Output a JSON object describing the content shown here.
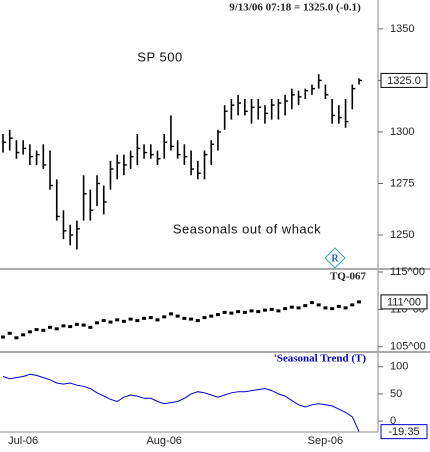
{
  "chart_data": [
    {
      "type": "ohlc",
      "title": "9/13/06 07:18 = 1325.0 (-0.1)",
      "annotations": [
        "SP 500",
        "Seasonals out of whack"
      ],
      "icon_label": "R",
      "color": "#000000",
      "high": [
        1299,
        1301,
        1296,
        1296,
        1294,
        1291,
        1294,
        1291,
        1277,
        1262,
        1255,
        1257,
        1279,
        1272,
        1279,
        1274,
        1286,
        1289,
        1289,
        1291,
        1299,
        1294,
        1294,
        1291,
        1299,
        1308,
        1296,
        1294,
        1291,
        1286,
        1291,
        1296,
        1301,
        1313,
        1316,
        1318,
        1316,
        1316,
        1316,
        1313,
        1316,
        1316,
        1318,
        1321,
        1320,
        1321,
        1323,
        1328,
        1323,
        1316,
        1313,
        1316,
        1323,
        1326
      ],
      "low": [
        1290,
        1291,
        1287,
        1289,
        1284,
        1284,
        1282,
        1272,
        1257,
        1248,
        1245,
        1243,
        1257,
        1257,
        1264,
        1260,
        1272,
        1277,
        1279,
        1282,
        1284,
        1287,
        1287,
        1284,
        1287,
        1291,
        1287,
        1284,
        1279,
        1277,
        1277,
        1284,
        1291,
        1301,
        1306,
        1308,
        1308,
        1304,
        1306,
        1304,
        1306,
        1306,
        1308,
        1311,
        1313,
        1316,
        1318,
        1321,
        1316,
        1304,
        1304,
        1302,
        1311,
        1323
      ],
      "close": [
        1295,
        1297,
        1290,
        1292,
        1288,
        1289,
        1284,
        1274,
        1259,
        1252,
        1250,
        1253,
        1270,
        1262,
        1275,
        1266,
        1282,
        1285,
        1284,
        1288,
        1292,
        1290,
        1289,
        1287,
        1295,
        1293,
        1289,
        1288,
        1282,
        1280,
        1289,
        1294,
        1300,
        1310,
        1313,
        1314,
        1310,
        1312,
        1312,
        1309,
        1313,
        1314,
        1315,
        1318,
        1317,
        1320,
        1321,
        1325,
        1318,
        1308,
        1307,
        1305,
        1321,
        1325
      ],
      "ylim": [
        1234,
        1364
      ],
      "yticks": [
        1250,
        1275,
        1300,
        1325,
        1350
      ],
      "last": {
        "value": 1325,
        "label": "1325.0"
      }
    },
    {
      "type": "dash",
      "title": "TQ-067",
      "color": "#000000",
      "values": [
        106.3,
        106.8,
        106.2,
        106.6,
        107.0,
        107.3,
        107.2,
        107.6,
        107.4,
        107.8,
        107.7,
        108.0,
        107.9,
        107.6,
        108.2,
        108.5,
        108.3,
        108.6,
        108.4,
        108.7,
        108.5,
        108.8,
        108.9,
        108.6,
        109.0,
        109.4,
        109.1,
        108.8,
        108.7,
        108.5,
        108.9,
        109.1,
        109.3,
        109.6,
        109.5,
        109.7,
        109.6,
        109.8,
        109.7,
        109.9,
        110.0,
        109.8,
        110.1,
        110.3,
        110.2,
        110.5,
        110.9,
        110.6,
        110.2,
        110.1,
        110.4,
        110.2,
        110.6,
        111.0
      ],
      "ylim": [
        104.3,
        115.4
      ],
      "yticks": [
        {
          "value": 105,
          "label": "105^00"
        },
        {
          "value": 110,
          "label": "110^00"
        },
        {
          "value": 115,
          "label": "115^00"
        }
      ],
      "last": {
        "value": 111,
        "label": "111^00"
      }
    },
    {
      "type": "line",
      "title": "'Seasonal Trend (T)",
      "color": "#0000cc",
      "categories": [
        null,
        null,
        null,
        "Jul-06",
        null,
        null,
        null,
        null,
        null,
        null,
        null,
        null,
        null,
        null,
        null,
        null,
        null,
        null,
        null,
        null,
        null,
        null,
        null,
        null,
        "Aug-06",
        null,
        null,
        null,
        null,
        null,
        null,
        null,
        null,
        null,
        null,
        null,
        null,
        null,
        null,
        null,
        null,
        null,
        null,
        null,
        null,
        null,
        null,
        null,
        "Sep-06",
        null,
        null,
        null,
        null,
        null
      ],
      "values": [
        82,
        78,
        80,
        82,
        86,
        84,
        80,
        76,
        70,
        68,
        70,
        66,
        64,
        60,
        52,
        46,
        40,
        36,
        44,
        48,
        46,
        42,
        42,
        36,
        32,
        34,
        36,
        42,
        50,
        54,
        52,
        48,
        44,
        48,
        52,
        54,
        54,
        56,
        58,
        60,
        56,
        50,
        46,
        38,
        30,
        26,
        30,
        32,
        30,
        28,
        22,
        16,
        8,
        -19.35
      ],
      "ylim": [
        -20,
        127
      ],
      "yticks": [
        0,
        50,
        100
      ],
      "last": {
        "value": -19.35,
        "label": "-19.35"
      }
    }
  ]
}
